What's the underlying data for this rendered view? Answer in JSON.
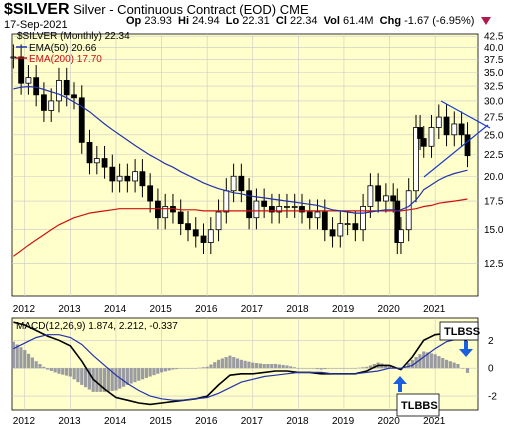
{
  "header": {
    "symbol": "$SILVER",
    "name": "Silver - Continuous Contract (EOD)",
    "exchange": "CME",
    "date": "17-Sep-2021",
    "quote": {
      "op_label": "Op",
      "op": "23.93",
      "hi_label": "Hi",
      "hi": "24.94",
      "lo_label": "Lo",
      "lo": "22.31",
      "cl_label": "Cl",
      "cl": "22.34",
      "vol_label": "Vol",
      "vol": "61.4M",
      "chg_label": "Chg",
      "chg": "-1.67 (-6.95%)"
    }
  },
  "legend": {
    "price": "$SILVER (Monthly) 22.34",
    "ema50": "EMA(50) 20.66",
    "ema200": "EMA(200) 17.70",
    "macd": "MACD(12,26,9) 1.874, 2.212, -0.337"
  },
  "annotations": {
    "tlbss": "TLBSS",
    "tlbbs": "TLBBS"
  },
  "colors": {
    "panel_bg": "#ffffcc",
    "grid": "#c8c8c8",
    "ema50": "#2233aa",
    "ema200": "#cc1111",
    "macd_line": "#000000",
    "signal_line": "#2233aa",
    "hist": "#8a8a9a",
    "arrow": "#1a5fe0"
  },
  "chart_data": [
    {
      "type": "line",
      "title": "$SILVER (Monthly)",
      "x_ticks": [
        "2012",
        "2013",
        "2014",
        "2015",
        "2016",
        "2017",
        "2018",
        "2019",
        "2020",
        "2021"
      ],
      "y_ticks": [
        12.5,
        15.0,
        17.5,
        20.0,
        22.5,
        25.0,
        27.5,
        30.0,
        32.5,
        35.0,
        37.5,
        40.0,
        42.5
      ],
      "y_scale": "log",
      "ylim": [
        10.5,
        43
      ],
      "grid": true,
      "x": [
        2011.75,
        2011.92,
        2012.08,
        2012.25,
        2012.42,
        2012.58,
        2012.75,
        2012.92,
        2013.08,
        2013.25,
        2013.42,
        2013.58,
        2013.75,
        2013.92,
        2014.08,
        2014.25,
        2014.42,
        2014.58,
        2014.75,
        2014.92,
        2015.08,
        2015.25,
        2015.42,
        2015.58,
        2015.75,
        2015.92,
        2016.08,
        2016.25,
        2016.42,
        2016.58,
        2016.75,
        2016.92,
        2017.08,
        2017.25,
        2017.42,
        2017.58,
        2017.75,
        2017.92,
        2018.08,
        2018.25,
        2018.42,
        2018.58,
        2018.75,
        2018.92,
        2019.08,
        2019.25,
        2019.42,
        2019.58,
        2019.75,
        2019.92,
        2020.08,
        2020.17,
        2020.25,
        2020.42,
        2020.58,
        2020.67,
        2020.75,
        2020.92,
        2021.08,
        2021.25,
        2021.42,
        2021.58,
        2021.71
      ],
      "series": [
        {
          "name": "$SILVER (Monthly)",
          "values": [
            38.0,
            33.0,
            34.0,
            31.0,
            28.5,
            30.0,
            33.5,
            31.0,
            30.5,
            24.0,
            21.5,
            22.0,
            21.0,
            19.5,
            20.0,
            19.5,
            20.5,
            19.0,
            17.5,
            16.0,
            17.0,
            16.5,
            15.5,
            15.0,
            14.5,
            14.0,
            15.0,
            16.5,
            18.5,
            20.0,
            18.5,
            16.0,
            17.5,
            17.0,
            16.5,
            17.0,
            17.0,
            17.0,
            16.5,
            16.0,
            16.5,
            15.0,
            14.5,
            15.5,
            15.5,
            15.0,
            17.0,
            19.0,
            17.5,
            18.0,
            17.5,
            14.0,
            15.0,
            18.5,
            26.0,
            24.5,
            23.5,
            26.0,
            27.5,
            25.0,
            26.5,
            25.0,
            22.34
          ]
        },
        {
          "name": "EMA(50)",
          "values": [
            32.0,
            32.3,
            32.4,
            32.3,
            31.9,
            31.5,
            31.1,
            30.5,
            29.8,
            29.1,
            28.3,
            27.4,
            26.5,
            25.7,
            25.0,
            24.3,
            23.6,
            23.0,
            22.4,
            21.9,
            21.4,
            21.0,
            20.5,
            20.1,
            19.7,
            19.3,
            19.0,
            18.7,
            18.5,
            18.3,
            18.2,
            18.0,
            17.9,
            17.8,
            17.7,
            17.6,
            17.5,
            17.4,
            17.3,
            17.2,
            17.1,
            16.9,
            16.7,
            16.6,
            16.5,
            16.4,
            16.4,
            16.5,
            16.6,
            16.7,
            16.7,
            16.6,
            16.7,
            17.0,
            17.6,
            18.1,
            18.6,
            19.1,
            19.6,
            20.0,
            20.3,
            20.5,
            20.66
          ]
        },
        {
          "name": "EMA(200)",
          "values": [
            13.0,
            13.4,
            13.8,
            14.2,
            14.6,
            15.0,
            15.4,
            15.7,
            16.0,
            16.2,
            16.4,
            16.5,
            16.6,
            16.7,
            16.8,
            16.8,
            16.8,
            16.8,
            16.8,
            16.8,
            16.8,
            16.8,
            16.7,
            16.7,
            16.7,
            16.6,
            16.6,
            16.6,
            16.6,
            16.6,
            16.6,
            16.6,
            16.6,
            16.6,
            16.6,
            16.6,
            16.6,
            16.6,
            16.6,
            16.6,
            16.6,
            16.6,
            16.6,
            16.6,
            16.6,
            16.6,
            16.6,
            16.6,
            16.6,
            16.6,
            16.6,
            16.6,
            16.6,
            16.7,
            16.8,
            16.9,
            17.0,
            17.1,
            17.3,
            17.4,
            17.5,
            17.6,
            17.7
          ]
        }
      ]
    },
    {
      "type": "line",
      "title": "MACD(12,26,9)",
      "x_ticks": [
        "2012",
        "2013",
        "2014",
        "2015",
        "2016",
        "2017",
        "2018",
        "2019",
        "2020",
        "2021"
      ],
      "y_ticks": [
        -2,
        0,
        2
      ],
      "ylim": [
        -3,
        3.6
      ],
      "grid": true,
      "x": [
        2011.75,
        2012.0,
        2012.25,
        2012.5,
        2012.75,
        2013.0,
        2013.25,
        2013.5,
        2013.75,
        2014.0,
        2014.25,
        2014.5,
        2014.75,
        2015.0,
        2015.25,
        2015.5,
        2015.75,
        2016.0,
        2016.25,
        2016.5,
        2016.75,
        2017.0,
        2017.25,
        2017.5,
        2017.75,
        2018.0,
        2018.25,
        2018.5,
        2018.75,
        2019.0,
        2019.25,
        2019.5,
        2019.75,
        2020.0,
        2020.25,
        2020.5,
        2020.75,
        2021.0,
        2021.25,
        2021.5,
        2021.71
      ],
      "series": [
        {
          "name": "MACD",
          "values": [
            3.3,
            3.1,
            2.7,
            2.3,
            2.0,
            1.6,
            0.5,
            -0.8,
            -1.5,
            -2.1,
            -2.3,
            -2.5,
            -2.6,
            -2.5,
            -2.4,
            -2.3,
            -2.2,
            -2.0,
            -1.2,
            -0.5,
            -0.4,
            -0.4,
            -0.3,
            -0.2,
            -0.2,
            -0.3,
            -0.3,
            -0.4,
            -0.4,
            -0.4,
            -0.4,
            -0.2,
            0.2,
            0.2,
            -0.1,
            0.8,
            2.0,
            2.4,
            2.5,
            2.4,
            1.874
          ]
        },
        {
          "name": "Signal",
          "values": [
            1.4,
            1.8,
            2.2,
            2.4,
            2.4,
            2.2,
            1.7,
            0.9,
            0.2,
            -0.5,
            -1.1,
            -1.6,
            -2.0,
            -2.2,
            -2.3,
            -2.3,
            -2.2,
            -2.1,
            -1.8,
            -1.4,
            -1.0,
            -0.8,
            -0.6,
            -0.5,
            -0.4,
            -0.3,
            -0.3,
            -0.3,
            -0.4,
            -0.4,
            -0.4,
            -0.3,
            -0.2,
            0.0,
            0.0,
            0.2,
            0.8,
            1.4,
            1.9,
            2.1,
            2.212
          ]
        },
        {
          "name": "Histogram",
          "values": [
            1.9,
            1.3,
            0.5,
            -0.1,
            -0.4,
            -0.6,
            -1.2,
            -1.7,
            -1.7,
            -1.6,
            -1.2,
            -0.9,
            -0.6,
            -0.3,
            -0.1,
            0.0,
            0.0,
            0.1,
            0.6,
            0.9,
            0.6,
            0.4,
            0.3,
            0.3,
            0.2,
            0.0,
            0.0,
            -0.1,
            0.0,
            0.0,
            0.0,
            0.1,
            0.4,
            0.2,
            -0.1,
            0.6,
            1.2,
            1.0,
            0.6,
            0.3,
            -0.337
          ]
        }
      ]
    }
  ]
}
